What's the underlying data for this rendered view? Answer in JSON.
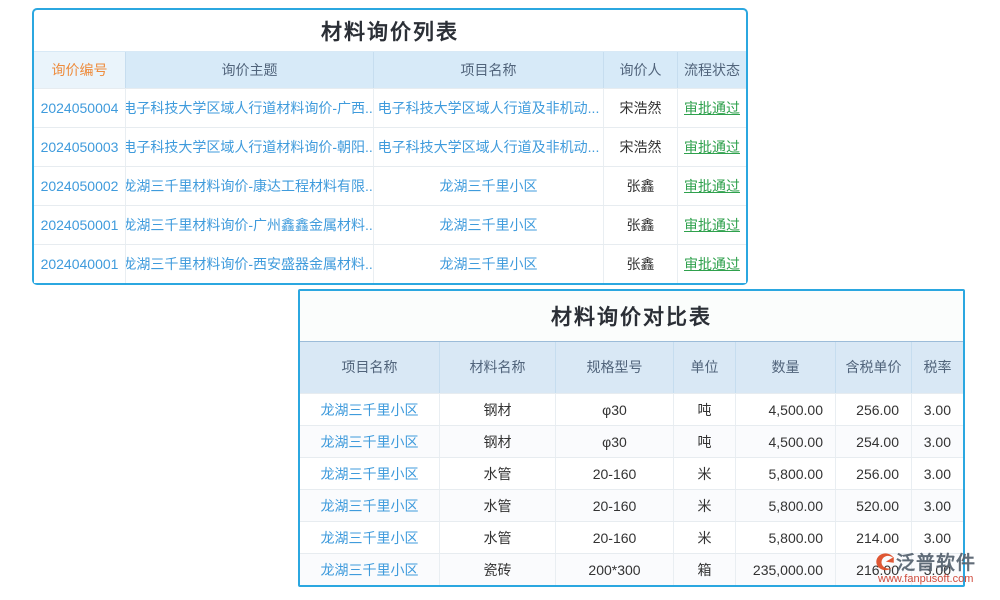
{
  "inquiry_list": {
    "title": "材料询价列表",
    "headers": {
      "no": "询价编号",
      "subject": "询价主题",
      "project": "项目名称",
      "person": "询价人",
      "status": "流程状态"
    },
    "rows": [
      {
        "no": "2024050004",
        "subject": "电子科技大学区域人行道材料询价-广西...",
        "project": "电子科技大学区域人行道及非机动...",
        "person": "宋浩然",
        "status": "审批通过"
      },
      {
        "no": "2024050003",
        "subject": "电子科技大学区域人行道材料询价-朝阳...",
        "project": "电子科技大学区域人行道及非机动...",
        "person": "宋浩然",
        "status": "审批通过"
      },
      {
        "no": "2024050002",
        "subject": "龙湖三千里材料询价-康达工程材料有限...",
        "project": "龙湖三千里小区",
        "person": "张鑫",
        "status": "审批通过"
      },
      {
        "no": "2024050001",
        "subject": "龙湖三千里材料询价-广州鑫鑫金属材料...",
        "project": "龙湖三千里小区",
        "person": "张鑫",
        "status": "审批通过"
      },
      {
        "no": "2024040001",
        "subject": "龙湖三千里材料询价-西安盛器金属材料...",
        "project": "龙湖三千里小区",
        "person": "张鑫",
        "status": "审批通过"
      }
    ]
  },
  "compare_table": {
    "title": "材料询价对比表",
    "headers": {
      "project": "项目名称",
      "material": "材料名称",
      "spec": "规格型号",
      "unit": "单位",
      "qty": "数量",
      "price": "含税单价",
      "tax": "税率"
    },
    "rows": [
      {
        "project": "龙湖三千里小区",
        "material": "钢材",
        "spec": "φ30",
        "unit": "吨",
        "qty": "4,500.00",
        "price": "256.00",
        "tax": "3.00"
      },
      {
        "project": "龙湖三千里小区",
        "material": "钢材",
        "spec": "φ30",
        "unit": "吨",
        "qty": "4,500.00",
        "price": "254.00",
        "tax": "3.00"
      },
      {
        "project": "龙湖三千里小区",
        "material": "水管",
        "spec": "20-160",
        "unit": "米",
        "qty": "5,800.00",
        "price": "256.00",
        "tax": "3.00"
      },
      {
        "project": "龙湖三千里小区",
        "material": "水管",
        "spec": "20-160",
        "unit": "米",
        "qty": "5,800.00",
        "price": "520.00",
        "tax": "3.00"
      },
      {
        "project": "龙湖三千里小区",
        "material": "水管",
        "spec": "20-160",
        "unit": "米",
        "qty": "5,800.00",
        "price": "214.00",
        "tax": "3.00"
      },
      {
        "project": "龙湖三千里小区",
        "material": "瓷砖",
        "spec": "200*300",
        "unit": "箱",
        "qty": "235,000.00",
        "price": "216.00",
        "tax": "3.00"
      }
    ]
  },
  "watermark": {
    "brand": "泛普软件",
    "url": "www.fanpusoft.com"
  },
  "colors": {
    "table_border": "#2BA7E0",
    "header_bg": "#D7EAF8",
    "header_first_bg": "#EAF4FB",
    "header_text": "#51647B",
    "accent_orange": "#EE8C3D",
    "link_blue": "#3F9BDC",
    "status_green": "#2FA14D",
    "watermark_url_red": "#CC3A2B"
  }
}
